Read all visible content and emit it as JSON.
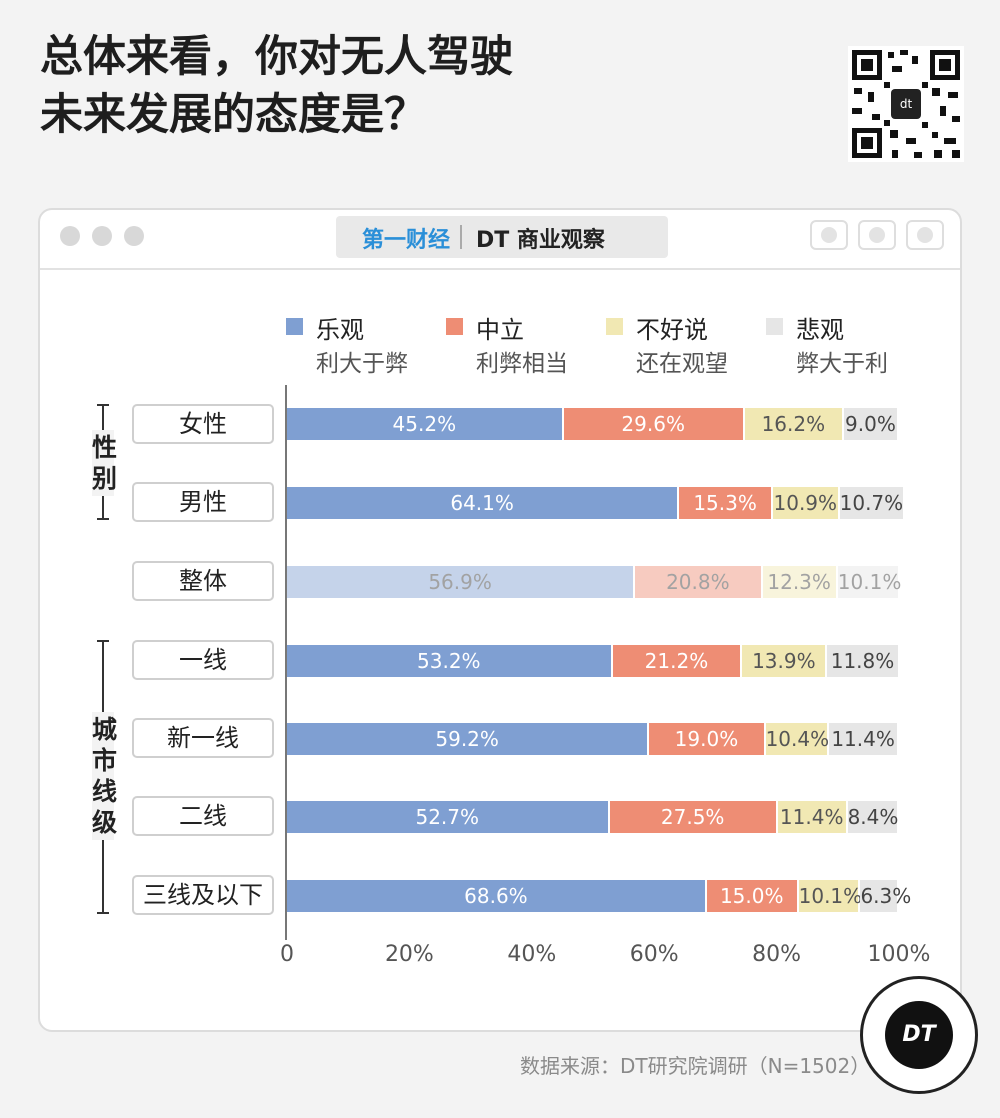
{
  "title_line1": "总体来看，你对无人驾驶",
  "title_line2": "未来发展的态度是？",
  "qr_center_text": "dt",
  "brand": {
    "left": "第一财经",
    "right": "DT 商业观察"
  },
  "legend": [
    {
      "name": "乐观",
      "desc": "利大于弊",
      "color": "#7f9fd2"
    },
    {
      "name": "中立",
      "desc": "利弊相当",
      "color": "#ee8d74"
    },
    {
      "name": "不好说",
      "desc": "还在观望",
      "color": "#f1e8b3"
    },
    {
      "name": "悲观",
      "desc": "弊大于利",
      "color": "#e6e6e6"
    }
  ],
  "groups": {
    "gender": "性别",
    "city": "城市线级"
  },
  "colors": {
    "optimistic": "#7f9fd2",
    "neutral": "#ee8d74",
    "unsure": "#f1e8b3",
    "pessimistic": "#e6e6e6"
  },
  "chart_data": {
    "type": "bar",
    "orientation": "horizontal",
    "stacked": true,
    "categories": [
      "女性",
      "男性",
      "整体",
      "一线",
      "新一线",
      "二线",
      "三线及以下"
    ],
    "series": [
      {
        "name": "乐观",
        "values": [
          45.2,
          64.1,
          56.9,
          53.2,
          59.2,
          52.7,
          68.6
        ]
      },
      {
        "name": "中立",
        "values": [
          29.6,
          15.3,
          20.8,
          21.2,
          19.0,
          27.5,
          15.0
        ]
      },
      {
        "name": "不好说",
        "values": [
          16.2,
          10.9,
          12.3,
          13.9,
          10.4,
          11.4,
          10.1
        ]
      },
      {
        "name": "悲观",
        "values": [
          9.0,
          10.7,
          10.1,
          11.8,
          11.4,
          8.4,
          6.3
        ]
      }
    ],
    "xlim": [
      0,
      100
    ],
    "xticks": [
      "0",
      "20%",
      "40%",
      "60%",
      "80%",
      "100%"
    ],
    "highlighted_category": "整体"
  },
  "source": "数据来源：DT研究院调研（N=1502）",
  "logo_text": "DT"
}
